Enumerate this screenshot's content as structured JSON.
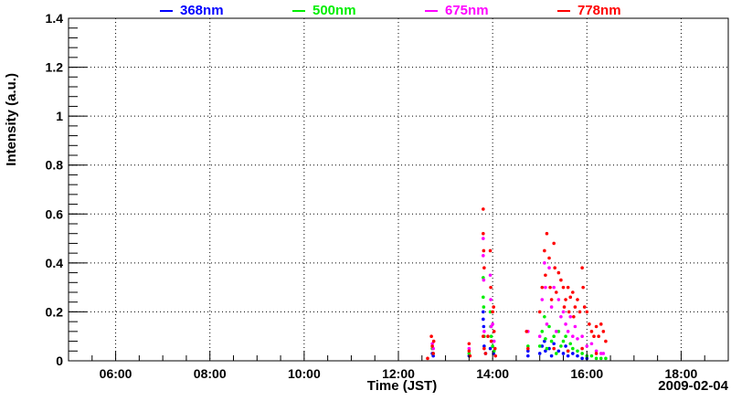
{
  "chart_data": {
    "type": "scatter",
    "title": "",
    "xlabel": "Time (JST)",
    "ylabel": "Intensity (a.u.)",
    "date_label": "2009-02-04",
    "xlim": [
      5,
      19
    ],
    "ylim": [
      0,
      1.4
    ],
    "grid": true,
    "legend_position": "top",
    "x_ticks": [
      {
        "v": 6,
        "label": "06:00"
      },
      {
        "v": 8,
        "label": "08:00"
      },
      {
        "v": 10,
        "label": "10:00"
      },
      {
        "v": 12,
        "label": "12:00"
      },
      {
        "v": 14,
        "label": "14:00"
      },
      {
        "v": 16,
        "label": "16:00"
      },
      {
        "v": 18,
        "label": "18:00"
      }
    ],
    "y_ticks": [
      {
        "v": 0,
        "label": "0"
      },
      {
        "v": 0.2,
        "label": "0.2"
      },
      {
        "v": 0.4,
        "label": "0.4"
      },
      {
        "v": 0.6,
        "label": "0.6"
      },
      {
        "v": 0.8,
        "label": "0.8"
      },
      {
        "v": 1,
        "label": "1"
      },
      {
        "v": 1.2,
        "label": "1.2"
      },
      {
        "v": 1.4,
        "label": "1.4"
      }
    ],
    "series": [
      {
        "name": "368nm",
        "color": "#0000ff",
        "points": [
          [
            12.72,
            0.03
          ],
          [
            12.74,
            0.02
          ],
          [
            13.5,
            0.02
          ],
          [
            13.8,
            0.2
          ],
          [
            13.8,
            0.17
          ],
          [
            13.81,
            0.14
          ],
          [
            13.82,
            0.06
          ],
          [
            13.85,
            0.03
          ],
          [
            13.95,
            0.05
          ],
          [
            13.98,
            0.08
          ],
          [
            14.02,
            0.03
          ],
          [
            14.75,
            0.04
          ],
          [
            14.75,
            0.02
          ],
          [
            15.0,
            0.03
          ],
          [
            15.05,
            0.06
          ],
          [
            15.1,
            0.08
          ],
          [
            15.12,
            0.04
          ],
          [
            15.2,
            0.05
          ],
          [
            15.25,
            0.02
          ],
          [
            15.3,
            0.07
          ],
          [
            15.4,
            0.04
          ],
          [
            15.5,
            0.03
          ],
          [
            15.55,
            0.06
          ],
          [
            15.6,
            0.02
          ],
          [
            15.7,
            0.03
          ],
          [
            15.8,
            0.02
          ],
          [
            15.9,
            0.01
          ],
          [
            16.0,
            0.01
          ]
        ]
      },
      {
        "name": "500nm",
        "color": "#00ee00",
        "points": [
          [
            12.72,
            0.05
          ],
          [
            12.74,
            0.03
          ],
          [
            13.5,
            0.03
          ],
          [
            13.8,
            0.34
          ],
          [
            13.8,
            0.26
          ],
          [
            13.81,
            0.22
          ],
          [
            13.82,
            0.1
          ],
          [
            13.95,
            0.2
          ],
          [
            13.96,
            0.14
          ],
          [
            13.97,
            0.1
          ],
          [
            14.0,
            0.06
          ],
          [
            14.03,
            0.04
          ],
          [
            14.75,
            0.06
          ],
          [
            15.0,
            0.06
          ],
          [
            15.05,
            0.12
          ],
          [
            15.1,
            0.18
          ],
          [
            15.12,
            0.09
          ],
          [
            15.15,
            0.05
          ],
          [
            15.2,
            0.14
          ],
          [
            15.25,
            0.08
          ],
          [
            15.3,
            0.1
          ],
          [
            15.35,
            0.03
          ],
          [
            15.4,
            0.12
          ],
          [
            15.45,
            0.06
          ],
          [
            15.5,
            0.08
          ],
          [
            15.55,
            0.1
          ],
          [
            15.6,
            0.04
          ],
          [
            15.65,
            0.07
          ],
          [
            15.7,
            0.05
          ],
          [
            15.8,
            0.04
          ],
          [
            15.9,
            0.03
          ],
          [
            16.0,
            0.02
          ],
          [
            16.1,
            0.02
          ],
          [
            16.2,
            0.01
          ],
          [
            16.3,
            0.01
          ],
          [
            16.4,
            0.01
          ]
        ]
      },
      {
        "name": "675nm",
        "color": "#ff00ff",
        "points": [
          [
            12.72,
            0.07
          ],
          [
            12.74,
            0.05
          ],
          [
            13.5,
            0.05
          ],
          [
            13.8,
            0.5
          ],
          [
            13.8,
            0.43
          ],
          [
            13.81,
            0.33
          ],
          [
            13.82,
            0.12
          ],
          [
            13.95,
            0.35
          ],
          [
            13.96,
            0.25
          ],
          [
            13.97,
            0.14
          ],
          [
            14.0,
            0.15
          ],
          [
            14.03,
            0.08
          ],
          [
            14.75,
            0.12
          ],
          [
            15.0,
            0.1
          ],
          [
            15.05,
            0.25
          ],
          [
            15.1,
            0.4
          ],
          [
            15.12,
            0.3
          ],
          [
            15.15,
            0.15
          ],
          [
            15.2,
            0.38
          ],
          [
            15.25,
            0.22
          ],
          [
            15.3,
            0.3
          ],
          [
            15.35,
            0.12
          ],
          [
            15.4,
            0.25
          ],
          [
            15.45,
            0.18
          ],
          [
            15.5,
            0.2
          ],
          [
            15.55,
            0.15
          ],
          [
            15.6,
            0.12
          ],
          [
            15.65,
            0.18
          ],
          [
            15.7,
            0.1
          ],
          [
            15.75,
            0.14
          ],
          [
            15.8,
            0.09
          ],
          [
            15.9,
            0.1
          ],
          [
            16.0,
            0.06
          ],
          [
            16.1,
            0.07
          ],
          [
            16.2,
            0.04
          ],
          [
            16.3,
            0.03
          ],
          [
            16.35,
            0.03
          ]
        ]
      },
      {
        "name": "778nm",
        "color": "#ff0000",
        "points": [
          [
            12.62,
            0.01
          ],
          [
            12.7,
            0.1
          ],
          [
            12.72,
            0.06
          ],
          [
            12.74,
            0.03
          ],
          [
            12.75,
            0.08
          ],
          [
            13.5,
            0.07
          ],
          [
            13.5,
            0.04
          ],
          [
            13.52,
            0.02
          ],
          [
            13.8,
            0.62
          ],
          [
            13.8,
            0.52
          ],
          [
            13.81,
            0.45
          ],
          [
            13.82,
            0.38
          ],
          [
            13.8,
            0.1
          ],
          [
            13.82,
            0.05
          ],
          [
            13.85,
            0.03
          ],
          [
            13.9,
            0.1
          ],
          [
            13.95,
            0.45
          ],
          [
            13.96,
            0.3
          ],
          [
            13.97,
            0.08
          ],
          [
            14.0,
            0.2
          ],
          [
            14.02,
            0.22
          ],
          [
            14.03,
            0.12
          ],
          [
            14.05,
            0.05
          ],
          [
            14.06,
            0.02
          ],
          [
            14.72,
            0.12
          ],
          [
            14.75,
            0.05
          ],
          [
            15.0,
            0.2
          ],
          [
            15.05,
            0.3
          ],
          [
            15.1,
            0.45
          ],
          [
            15.12,
            0.35
          ],
          [
            15.15,
            0.52
          ],
          [
            15.2,
            0.42
          ],
          [
            15.22,
            0.3
          ],
          [
            15.25,
            0.25
          ],
          [
            15.3,
            0.48
          ],
          [
            15.32,
            0.38
          ],
          [
            15.35,
            0.28
          ],
          [
            15.4,
            0.36
          ],
          [
            15.45,
            0.33
          ],
          [
            15.5,
            0.3
          ],
          [
            15.52,
            0.22
          ],
          [
            15.55,
            0.25
          ],
          [
            15.6,
            0.3
          ],
          [
            15.62,
            0.2
          ],
          [
            15.65,
            0.26
          ],
          [
            15.7,
            0.28
          ],
          [
            15.72,
            0.18
          ],
          [
            15.75,
            0.22
          ],
          [
            15.8,
            0.25
          ],
          [
            15.85,
            0.2
          ],
          [
            15.9,
            0.38
          ],
          [
            15.92,
            0.3
          ],
          [
            15.95,
            0.22
          ],
          [
            16.0,
            0.2
          ],
          [
            16.05,
            0.15
          ],
          [
            16.1,
            0.12
          ],
          [
            16.15,
            0.1
          ],
          [
            16.2,
            0.14
          ],
          [
            16.25,
            0.1
          ],
          [
            16.3,
            0.15
          ],
          [
            16.35,
            0.12
          ],
          [
            16.4,
            0.08
          ],
          [
            15.3,
            0.05
          ],
          [
            15.6,
            0.04
          ],
          [
            15.9,
            0.05
          ],
          [
            16.2,
            0.03
          ]
        ]
      }
    ]
  }
}
